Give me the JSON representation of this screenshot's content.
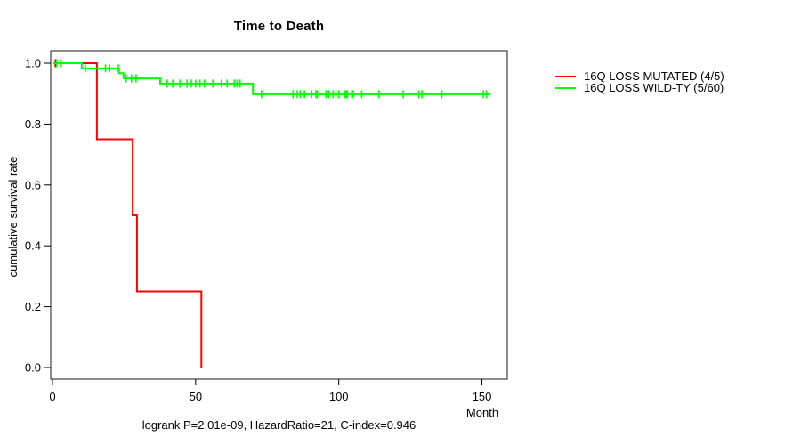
{
  "figure": {
    "title": "Time to Death",
    "y_axis_label": "cumulative survival rate",
    "x_axis_label": "Month",
    "annotation": "logrank P=2.01e-09, HazardRatio=21, C-index=0.946"
  },
  "legend": {
    "items": [
      {
        "label": "16Q LOSS MUTATED (4/5)",
        "color": "#ff0000"
      },
      {
        "label": "16Q LOSS WILD-TY (5/60)",
        "color": "#00ff00"
      }
    ]
  },
  "chart_data": {
    "type": "line",
    "subtype": "kaplan-meier-step",
    "title": "Time to Death",
    "xlabel": "Month",
    "ylabel": "cumulative survival rate",
    "xlim": [
      0,
      158
    ],
    "ylim": [
      0,
      1
    ],
    "x_ticks": [
      0,
      50,
      100,
      150
    ],
    "x_tick_labels": [
      "0",
      "50",
      "100",
      "150"
    ],
    "y_ticks": [
      0.0,
      0.2,
      0.4,
      0.6,
      0.8,
      1.0
    ],
    "y_tick_labels": [
      "0.0",
      "0.2",
      "0.4",
      "0.6",
      "0.8",
      "1.0"
    ],
    "grid": false,
    "legend_position": "right-outside",
    "annotation": "logrank P=2.01e-09, HazardRatio=21, C-index=0.946",
    "axis_color": "#000000",
    "box_color": "#3f3f3f",
    "series": [
      {
        "name": "16Q LOSS MUTATED (4/5)",
        "color": "#ff0000",
        "steps": [
          [
            0,
            1.0
          ],
          [
            15.5,
            0.75
          ],
          [
            28,
            0.5
          ],
          [
            29.5,
            0.25
          ],
          [
            52,
            0.0
          ]
        ],
        "end_time": 52,
        "censor_times": [
          1
        ]
      },
      {
        "name": "16Q LOSS WILD-TY (5/60)",
        "color": "#00ff00",
        "steps": [
          [
            0,
            1.0
          ],
          [
            10.2,
            0.983
          ],
          [
            23.2,
            0.967
          ],
          [
            24.8,
            0.95
          ],
          [
            37.6,
            0.933
          ],
          [
            70,
            0.898
          ]
        ],
        "end_time": 153,
        "censor_times": [
          1.5,
          2.8,
          11.5,
          18.5,
          20,
          23,
          25.7,
          27.6,
          29.2,
          40,
          42,
          44.5,
          47,
          48.5,
          50,
          51.5,
          53,
          56,
          59,
          61,
          63.5,
          64.5,
          65.5,
          73,
          84,
          85.5,
          86.5,
          88,
          90.5,
          92,
          92.5,
          95.5,
          96.5,
          98,
          99,
          100,
          102,
          102.5,
          103,
          104.5,
          105,
          108,
          114,
          122.5,
          128,
          129,
          136,
          150.5,
          151.5
        ]
      }
    ]
  }
}
